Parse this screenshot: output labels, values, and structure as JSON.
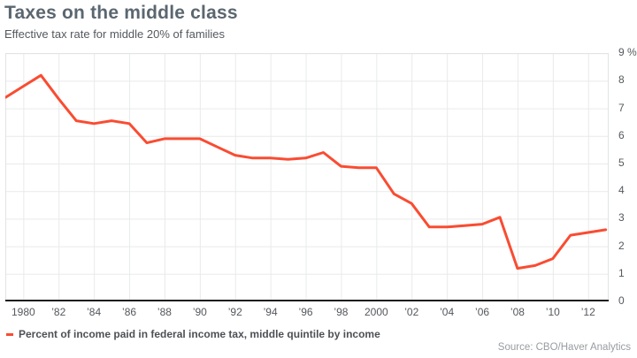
{
  "header": {
    "title": "Taxes on the middle class",
    "subtitle": "Effective tax rate for middle 20% of families"
  },
  "legend": {
    "label": "Percent of income paid in federal income tax, middle quintile by income"
  },
  "footer": {
    "source": "Source: CBO/Haver Analytics"
  },
  "colors": {
    "line": "#f94c32",
    "grid": "#e9eaea",
    "plot_border": "#e2e3e4",
    "axis_line": "#1a1a1a",
    "title": "#5b6770",
    "tick_text": "#55585c"
  },
  "chart_data": {
    "type": "line",
    "title": "Taxes on the middle class",
    "subtitle": "Effective tax rate for middle 20% of families",
    "series": [
      {
        "name": "Percent of income paid in federal income tax, middle quintile by income",
        "color": "#f94c32",
        "x": [
          1979,
          1980,
          1981,
          1982,
          1983,
          1984,
          1985,
          1986,
          1987,
          1988,
          1989,
          1990,
          1991,
          1992,
          1993,
          1994,
          1995,
          1996,
          1997,
          1998,
          1999,
          2000,
          2001,
          2002,
          2003,
          2004,
          2005,
          2006,
          2007,
          2008,
          2009,
          2010,
          2011,
          2012,
          2013
        ],
        "values": [
          7.4,
          7.8,
          8.2,
          7.35,
          6.55,
          6.45,
          6.55,
          6.45,
          5.75,
          5.9,
          5.9,
          5.9,
          5.6,
          5.3,
          5.2,
          5.2,
          5.15,
          5.2,
          5.4,
          4.9,
          4.85,
          4.85,
          3.9,
          3.55,
          2.7,
          2.7,
          2.75,
          2.8,
          3.05,
          1.2,
          1.3,
          1.55,
          2.4,
          2.5,
          2.6
        ]
      }
    ],
    "xlabel": "",
    "ylabel": "%",
    "xlim": [
      1979,
      2013.2
    ],
    "ylim": [
      0,
      9
    ],
    "grid": "on",
    "legend_position": "bottom-left",
    "x_ticks": [
      {
        "label": "1980",
        "year": 1980
      },
      {
        "label": "’82",
        "year": 1982
      },
      {
        "label": "’84",
        "year": 1984
      },
      {
        "label": "’86",
        "year": 1986
      },
      {
        "label": "’88",
        "year": 1988
      },
      {
        "label": "’90",
        "year": 1990
      },
      {
        "label": "’92",
        "year": 1992
      },
      {
        "label": "’94",
        "year": 1994
      },
      {
        "label": "’96",
        "year": 1996
      },
      {
        "label": "’98",
        "year": 1998
      },
      {
        "label": "2000",
        "year": 2000
      },
      {
        "label": "’02",
        "year": 2002
      },
      {
        "label": "’04",
        "year": 2004
      },
      {
        "label": "’06",
        "year": 2006
      },
      {
        "label": "’08",
        "year": 2008
      },
      {
        "label": "’10",
        "year": 2010
      },
      {
        "label": "’12",
        "year": 2012
      }
    ],
    "y_ticks": [
      {
        "label": "9 %",
        "value": 9
      },
      {
        "label": "8",
        "value": 8
      },
      {
        "label": "7",
        "value": 7
      },
      {
        "label": "6",
        "value": 6
      },
      {
        "label": "5",
        "value": 5
      },
      {
        "label": "4",
        "value": 4
      },
      {
        "label": "3",
        "value": 3
      },
      {
        "label": "2",
        "value": 2
      },
      {
        "label": "1",
        "value": 1
      },
      {
        "label": "0",
        "value": 0
      }
    ]
  }
}
